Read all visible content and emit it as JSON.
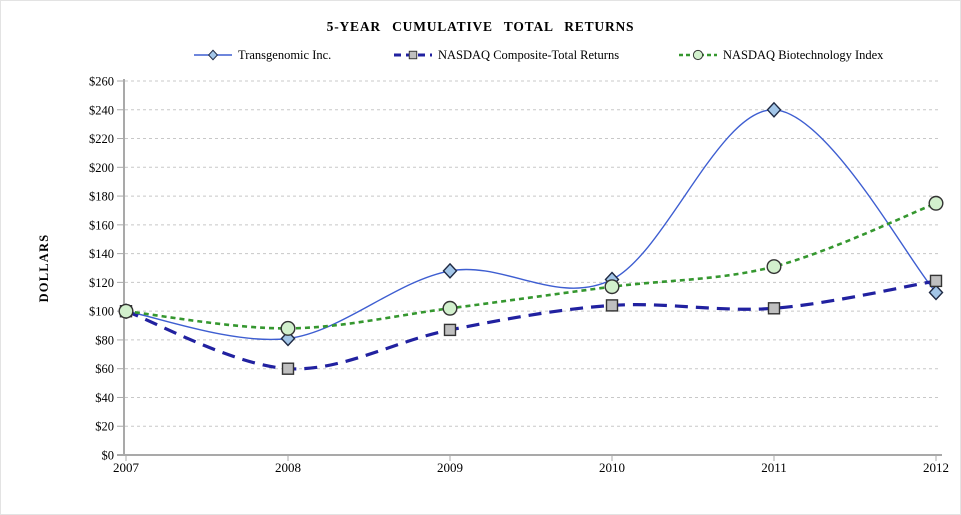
{
  "chart_data": {
    "type": "line",
    "title": "5-YEAR CUMULATIVE TOTAL RETURNS",
    "ylabel": "DOLLARS",
    "x": [
      "2007",
      "2008",
      "2009",
      "2010",
      "2011",
      "2012"
    ],
    "series": [
      {
        "name": "Transgenomic Inc.",
        "values": [
          100,
          81,
          128,
          122,
          240,
          113
        ],
        "color": "#3e5ed1",
        "dash": "",
        "line_width": 1.4,
        "marker": "diamond",
        "marker_fill": "#a3c6e8",
        "marker_stroke": "#1f2a44"
      },
      {
        "name": "NASDAQ Composite-Total Returns",
        "values": [
          100,
          60,
          87,
          104,
          102,
          121
        ],
        "color": "#2121a0",
        "dash": "13,8",
        "line_width": 3.2,
        "marker": "square",
        "marker_fill": "#bfbfbf",
        "marker_stroke": "#333333"
      },
      {
        "name": "NASDAQ Biotechnology Index",
        "values": [
          100,
          88,
          102,
          117,
          131,
          175
        ],
        "color": "#35972f",
        "dash": "5,4",
        "line_width": 2.6,
        "marker": "circle",
        "marker_fill": "#d2f0cd",
        "marker_stroke": "#333333"
      }
    ],
    "ylim": [
      0,
      260
    ],
    "ytick_step": 20,
    "ytick_prefix": "$",
    "grid": true,
    "legend_position": "top",
    "smooth": true
  },
  "colors": {
    "grid": "#c8c8c8",
    "axis": "#a9a9a9",
    "text": "#000000",
    "background": "#ffffff"
  }
}
